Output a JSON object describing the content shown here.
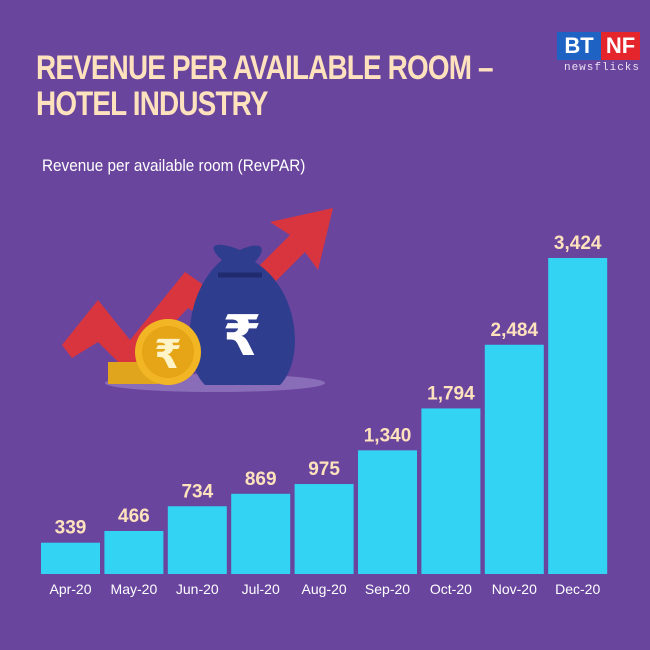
{
  "header": {
    "title_line1": "REVENUE PER AVAILABLE ROOM –",
    "title_line2": "HOTEL INDUSTRY",
    "subtitle": "Revenue per available room (RevPAR)"
  },
  "logo": {
    "left": "BT",
    "right": "NF",
    "tagline": "newsflicks"
  },
  "colors": {
    "background": "#6a459e",
    "bar": "#33d3f4",
    "title": "#fde2bd",
    "arrow": "#d9353f",
    "bag": "#2f3d8f",
    "coin": "#f2b625"
  },
  "illustration": {
    "icons": [
      "rising-arrow-icon",
      "money-bag-rupee-icon",
      "rupee-coin-icon"
    ]
  },
  "chart_data": {
    "type": "bar",
    "title": "Revenue per available room (RevPAR)",
    "categories": [
      "Apr-20",
      "May-20",
      "Jun-20",
      "Jul-20",
      "Aug-20",
      "Sep-20",
      "Oct-20",
      "Nov-20",
      "Dec-20"
    ],
    "values": [
      339,
      466,
      734,
      869,
      975,
      1340,
      1794,
      2484,
      3424
    ],
    "value_labels": [
      "339",
      "466",
      "734",
      "869",
      "975",
      "1,340",
      "1,794",
      "2,484",
      "3,424"
    ],
    "xlabel": "",
    "ylabel": "",
    "ylim": [
      0,
      3424
    ],
    "grid": false,
    "legend": "none"
  }
}
